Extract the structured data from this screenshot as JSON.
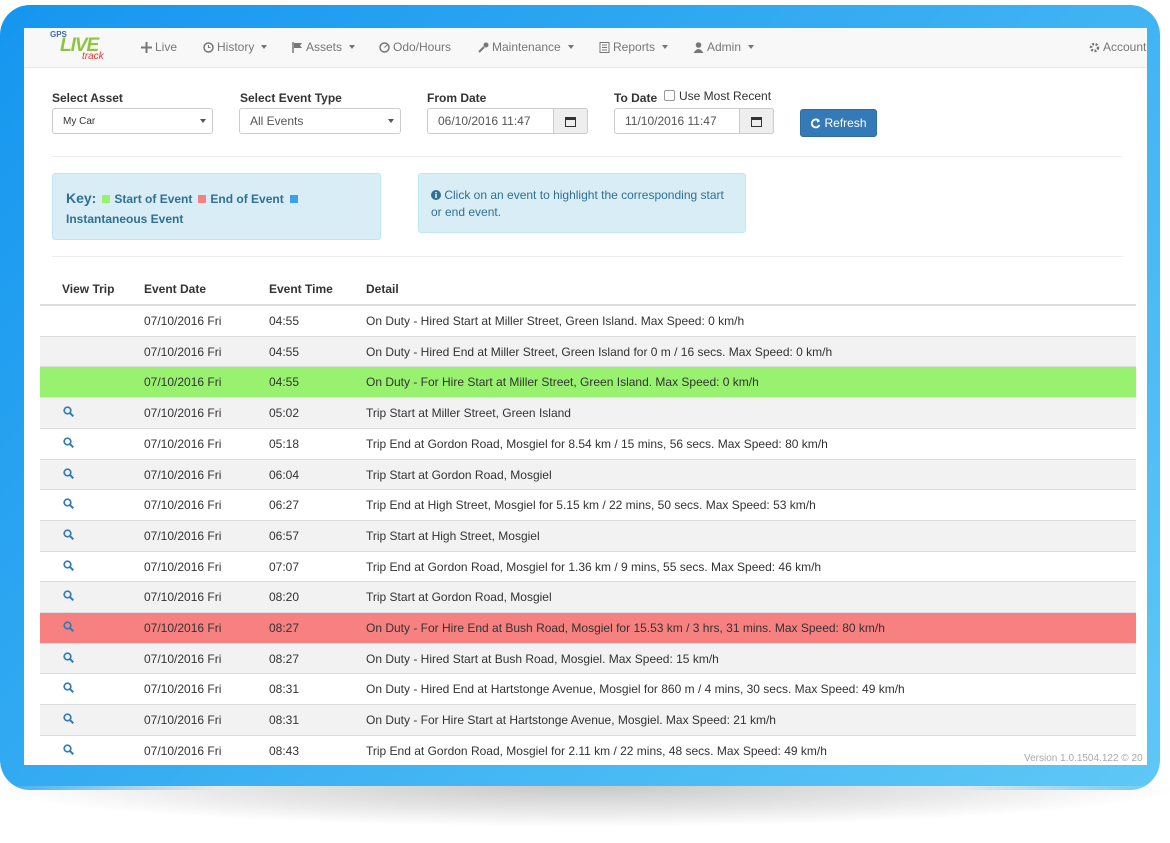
{
  "logo": {
    "gps": "GPS",
    "live": "LIVE",
    "track": "track"
  },
  "nav": [
    "Live",
    "History",
    "Assets",
    "Odo/Hours",
    "Maintenance",
    "Reports",
    "Admin",
    "Account"
  ],
  "form": {
    "asset": {
      "label": "Select Asset",
      "value": "My Car"
    },
    "event_type": {
      "label": "Select Event Type",
      "value": "All Events"
    },
    "from_date": {
      "label": "From Date",
      "value": "06/10/2016 11:47"
    },
    "to_date": {
      "label": "To Date",
      "checkbox": "Use Most Recent",
      "value": "11/10/2016 11:47"
    },
    "button": "Refresh"
  },
  "key": {
    "title": "Key:",
    "start": "Start of Event",
    "end": "End of Event",
    "instant": "Instantaneous Event"
  },
  "info": "Click on an event to highlight the corresponding start or end event.",
  "table": {
    "headers": [
      "View Trip",
      "Event Date",
      "Event Time",
      "Detail"
    ],
    "rows": [
      {
        "trip": false,
        "highlight": null,
        "date": "07/10/2016 Fri",
        "time": "04:55",
        "detail": "On Duty - Hired Start at Miller Street, Green Island. Max Speed: 0 km/h"
      },
      {
        "trip": false,
        "highlight": null,
        "date": "07/10/2016 Fri",
        "time": "04:55",
        "detail": "On Duty - Hired End at Miller Street, Green Island for 0 m / 16 secs. Max Speed: 0 km/h"
      },
      {
        "trip": false,
        "highlight": "start",
        "date": "07/10/2016 Fri",
        "time": "04:55",
        "detail": "On Duty - For Hire Start at Miller Street, Green Island. Max Speed: 0 km/h"
      },
      {
        "trip": true,
        "highlight": null,
        "date": "07/10/2016 Fri",
        "time": "05:02",
        "detail": "Trip Start at Miller Street, Green Island"
      },
      {
        "trip": true,
        "highlight": null,
        "date": "07/10/2016 Fri",
        "time": "05:18",
        "detail": "Trip End at Gordon Road, Mosgiel for 8.54 km / 15 mins, 56 secs. Max Speed: 80 km/h"
      },
      {
        "trip": true,
        "highlight": null,
        "date": "07/10/2016 Fri",
        "time": "06:04",
        "detail": "Trip Start at Gordon Road, Mosgiel"
      },
      {
        "trip": true,
        "highlight": null,
        "date": "07/10/2016 Fri",
        "time": "06:27",
        "detail": "Trip End at High Street, Mosgiel for 5.15 km / 22 mins, 50 secs. Max Speed: 53 km/h"
      },
      {
        "trip": true,
        "highlight": null,
        "date": "07/10/2016 Fri",
        "time": "06:57",
        "detail": "Trip Start at High Street, Mosgiel"
      },
      {
        "trip": true,
        "highlight": null,
        "date": "07/10/2016 Fri",
        "time": "07:07",
        "detail": "Trip End at Gordon Road, Mosgiel for 1.36 km / 9 mins, 55 secs. Max Speed: 46 km/h"
      },
      {
        "trip": true,
        "highlight": null,
        "date": "07/10/2016 Fri",
        "time": "08:20",
        "detail": "Trip Start at Gordon Road, Mosgiel"
      },
      {
        "trip": true,
        "highlight": "end",
        "date": "07/10/2016 Fri",
        "time": "08:27",
        "detail": "On Duty - For Hire End at Bush Road, Mosgiel for 15.53 km / 3 hrs, 31 mins. Max Speed: 80 km/h"
      },
      {
        "trip": true,
        "highlight": null,
        "date": "07/10/2016 Fri",
        "time": "08:27",
        "detail": "On Duty - Hired Start at Bush Road, Mosgiel. Max Speed: 15 km/h"
      },
      {
        "trip": true,
        "highlight": null,
        "date": "07/10/2016 Fri",
        "time": "08:31",
        "detail": "On Duty - Hired End at Hartstonge Avenue, Mosgiel for 860 m / 4 mins, 30 secs. Max Speed: 49 km/h"
      },
      {
        "trip": true,
        "highlight": null,
        "date": "07/10/2016 Fri",
        "time": "08:31",
        "detail": "On Duty - For Hire Start at Hartstonge Avenue, Mosgiel. Max Speed: 21 km/h"
      },
      {
        "trip": true,
        "highlight": null,
        "date": "07/10/2016 Fri",
        "time": "08:43",
        "detail": "Trip End at Gordon Road, Mosgiel for 2.11 km / 22 mins, 48 secs. Max Speed: 49 km/h"
      }
    ]
  },
  "version": "Version 1.0.1504.122 © 20"
}
